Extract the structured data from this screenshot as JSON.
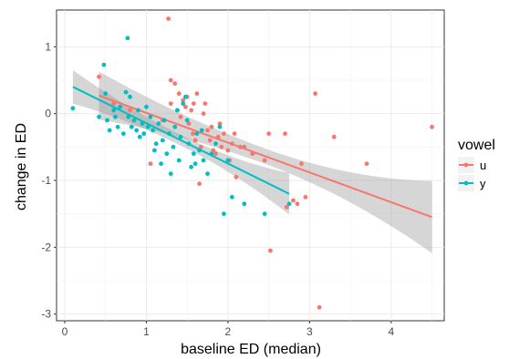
{
  "chart_data": {
    "type": "scatter",
    "xlabel": "baseline ED (median)",
    "ylabel": "change in ED",
    "xlim": [
      -0.1,
      4.65
    ],
    "ylim": [
      -3.1,
      1.55
    ],
    "x_ticks": [
      0,
      1,
      2,
      3,
      4
    ],
    "y_ticks": [
      -3,
      -2,
      -1,
      0,
      1
    ],
    "grid": true,
    "legend": {
      "title": "vowel",
      "position": "right"
    },
    "series": [
      {
        "name": "u",
        "color": "#F8766D",
        "points": [
          [
            0.42,
            0.55
          ],
          [
            0.6,
            0.15
          ],
          [
            0.8,
            0.05
          ],
          [
            1.05,
            -0.75
          ],
          [
            1.2,
            -0.1
          ],
          [
            1.27,
            1.42
          ],
          [
            1.3,
            0.5
          ],
          [
            1.3,
            0.15
          ],
          [
            1.35,
            0.45
          ],
          [
            1.38,
            0.05
          ],
          [
            1.4,
            0.3
          ],
          [
            1.42,
            -0.05
          ],
          [
            1.45,
            0.2
          ],
          [
            1.48,
            0.1
          ],
          [
            1.5,
            0.25
          ],
          [
            1.52,
            -0.15
          ],
          [
            1.55,
            0.05
          ],
          [
            1.57,
            -0.3
          ],
          [
            1.58,
            0.15
          ],
          [
            1.6,
            -0.4
          ],
          [
            1.62,
            0.3
          ],
          [
            1.65,
            -1.05
          ],
          [
            1.67,
            -0.5
          ],
          [
            1.7,
            0.0
          ],
          [
            1.72,
            0.15
          ],
          [
            1.75,
            -0.25
          ],
          [
            1.78,
            -0.4
          ],
          [
            1.8,
            -0.2
          ],
          [
            1.82,
            -0.55
          ],
          [
            1.85,
            -0.6
          ],
          [
            1.88,
            -0.35
          ],
          [
            1.9,
            -0.15
          ],
          [
            1.92,
            -0.5
          ],
          [
            1.95,
            -0.3
          ],
          [
            2.0,
            -0.55
          ],
          [
            2.02,
            -0.7
          ],
          [
            2.05,
            -0.45
          ],
          [
            2.08,
            -0.3
          ],
          [
            2.1,
            -0.95
          ],
          [
            2.15,
            -0.5
          ],
          [
            2.2,
            -0.5
          ],
          [
            2.3,
            -0.6
          ],
          [
            2.45,
            -0.7
          ],
          [
            2.5,
            -0.3
          ],
          [
            2.52,
            -2.05
          ],
          [
            2.7,
            -0.3
          ],
          [
            2.72,
            -1.4
          ],
          [
            2.8,
            -1.3
          ],
          [
            2.85,
            -1.35
          ],
          [
            2.9,
            -0.75
          ],
          [
            2.95,
            -1.25
          ],
          [
            3.07,
            0.3
          ],
          [
            3.12,
            -2.9
          ],
          [
            3.3,
            -0.35
          ],
          [
            3.7,
            -0.75
          ],
          [
            4.5,
            -0.2
          ]
        ],
        "fit": {
          "x0": 0.42,
          "y0": 0.27,
          "x1": 4.5,
          "y1": -1.55,
          "ci_start": [
            -0.1,
            0.62
          ],
          "ci_end": [
            -1.02,
            -2.1
          ]
        }
      },
      {
        "name": "y",
        "color": "#00BFC4",
        "points": [
          [
            0.1,
            0.08
          ],
          [
            0.42,
            -0.05
          ],
          [
            0.48,
            0.73
          ],
          [
            0.5,
            0.3
          ],
          [
            0.52,
            -0.1
          ],
          [
            0.55,
            -0.25
          ],
          [
            0.6,
            0.05
          ],
          [
            0.62,
            -0.05
          ],
          [
            0.65,
            -0.2
          ],
          [
            0.68,
            0.1
          ],
          [
            0.72,
            -0.3
          ],
          [
            0.75,
            0.32
          ],
          [
            0.77,
            1.13
          ],
          [
            0.78,
            -0.05
          ],
          [
            0.8,
            0.25
          ],
          [
            0.82,
            -0.2
          ],
          [
            0.85,
            -0.1
          ],
          [
            0.88,
            -0.25
          ],
          [
            0.9,
            0.05
          ],
          [
            0.92,
            -0.35
          ],
          [
            0.95,
            -0.15
          ],
          [
            0.97,
            -0.3
          ],
          [
            1.0,
            0.1
          ],
          [
            1.02,
            -0.2
          ],
          [
            1.05,
            -0.05
          ],
          [
            1.08,
            -0.25
          ],
          [
            1.1,
            -0.55
          ],
          [
            1.12,
            -0.45
          ],
          [
            1.15,
            -0.15
          ],
          [
            1.18,
            -0.75
          ],
          [
            1.2,
            -0.4
          ],
          [
            1.22,
            -0.1
          ],
          [
            1.25,
            -0.6
          ],
          [
            1.28,
            -0.3
          ],
          [
            1.3,
            -0.9
          ],
          [
            1.33,
            -0.5
          ],
          [
            1.35,
            -0.2
          ],
          [
            1.38,
            0.05
          ],
          [
            1.4,
            -0.7
          ],
          [
            1.42,
            -0.35
          ],
          [
            1.45,
            0.15
          ],
          [
            1.48,
            0.25
          ],
          [
            1.5,
            -0.1
          ],
          [
            1.52,
            -0.45
          ],
          [
            1.55,
            -0.8
          ],
          [
            1.58,
            -0.6
          ],
          [
            1.6,
            -0.75
          ],
          [
            1.62,
            -0.3
          ],
          [
            1.65,
            -0.55
          ],
          [
            1.68,
            -0.25
          ],
          [
            1.7,
            -0.7
          ],
          [
            1.75,
            -0.9
          ],
          [
            1.8,
            -0.6
          ],
          [
            1.85,
            -0.45
          ],
          [
            1.9,
            -0.2
          ],
          [
            1.95,
            -1.5
          ],
          [
            2.0,
            -0.7
          ],
          [
            2.05,
            -1.25
          ],
          [
            2.2,
            -1.35
          ],
          [
            2.45,
            -1.5
          ],
          [
            2.75,
            -1.35
          ]
        ],
        "fit": {
          "x0": 0.1,
          "y0": 0.4,
          "x1": 2.75,
          "y1": -1.2,
          "ci_start": [
            0.65,
            0.15
          ],
          "ci_end": [
            -0.9,
            -1.52
          ]
        }
      }
    ]
  }
}
